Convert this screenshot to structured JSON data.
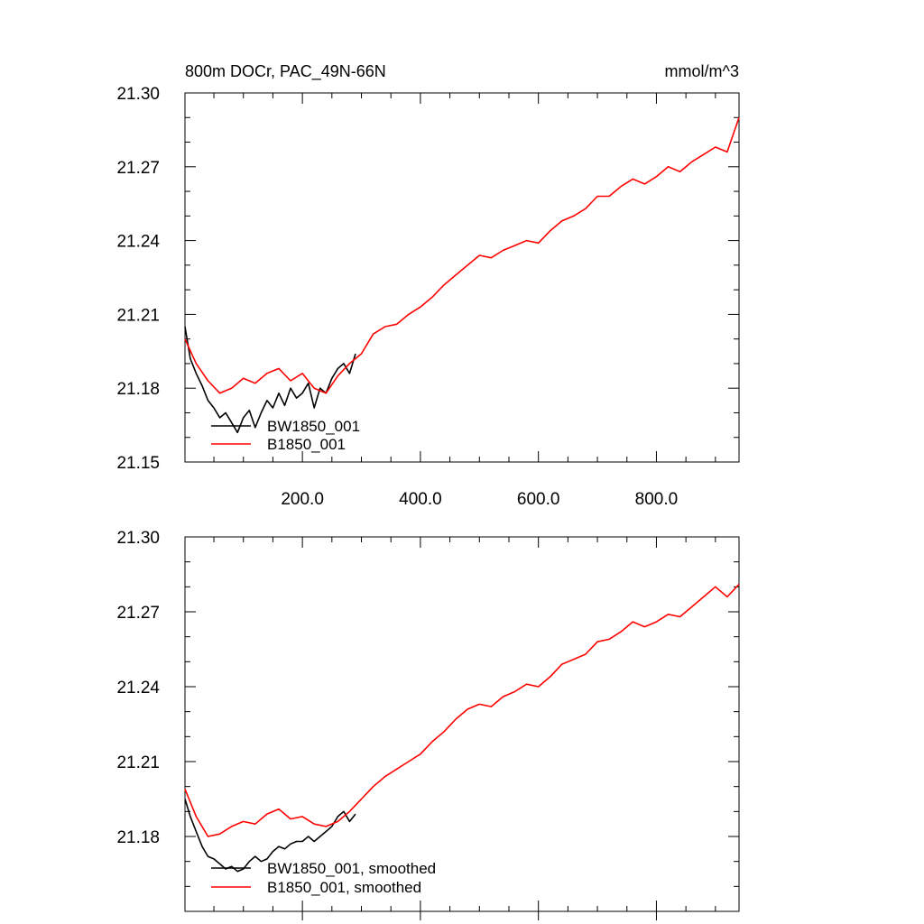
{
  "chart_data": [
    {
      "type": "line",
      "title": "800m DOCr, PAC_49N-66N",
      "units": "mmol/m^3",
      "xlim": [
        1,
        940
      ],
      "ylim": [
        21.15,
        21.3
      ],
      "xticks": [
        {
          "value": 200,
          "label": "200.0"
        },
        {
          "value": 400,
          "label": "400.0"
        },
        {
          "value": 600,
          "label": "600.0"
        },
        {
          "value": 800,
          "label": "800.0"
        }
      ],
      "yticks": [
        {
          "value": 21.15,
          "label": "21.15"
        },
        {
          "value": 21.18,
          "label": "21.18"
        },
        {
          "value": 21.21,
          "label": "21.21"
        },
        {
          "value": 21.24,
          "label": "21.24"
        },
        {
          "value": 21.27,
          "label": "21.27"
        },
        {
          "value": 21.3,
          "label": "21.30"
        }
      ],
      "legend": "bottom-left",
      "series": [
        {
          "name": "BW1850_001",
          "color": "#000000",
          "x": [
            1,
            10,
            20,
            30,
            40,
            50,
            60,
            70,
            80,
            90,
            100,
            110,
            120,
            130,
            140,
            150,
            160,
            170,
            180,
            190,
            200,
            210,
            220,
            230,
            240,
            250,
            260,
            270,
            280,
            290
          ],
          "values": [
            21.205,
            21.192,
            21.186,
            21.181,
            21.175,
            21.172,
            21.168,
            21.17,
            21.166,
            21.162,
            21.168,
            21.171,
            21.164,
            21.17,
            21.175,
            21.172,
            21.178,
            21.173,
            21.18,
            21.176,
            21.178,
            21.182,
            21.172,
            21.18,
            21.178,
            21.184,
            21.188,
            21.19,
            21.186,
            21.194
          ]
        },
        {
          "name": "B1850_001",
          "color": "#ff0000",
          "x": [
            1,
            20,
            40,
            60,
            80,
            100,
            120,
            140,
            160,
            180,
            200,
            220,
            240,
            260,
            280,
            300,
            320,
            340,
            360,
            380,
            400,
            420,
            440,
            460,
            480,
            500,
            520,
            540,
            560,
            580,
            600,
            620,
            640,
            660,
            680,
            700,
            720,
            740,
            760,
            780,
            800,
            820,
            840,
            860,
            880,
            900,
            920,
            940
          ],
          "values": [
            21.2,
            21.19,
            21.183,
            21.178,
            21.18,
            21.184,
            21.182,
            21.186,
            21.188,
            21.183,
            21.186,
            21.18,
            21.178,
            21.185,
            21.19,
            21.194,
            21.202,
            21.205,
            21.206,
            21.21,
            21.213,
            21.217,
            21.222,
            21.226,
            21.23,
            21.234,
            21.233,
            21.236,
            21.238,
            21.24,
            21.239,
            21.244,
            21.248,
            21.25,
            21.253,
            21.258,
            21.258,
            21.262,
            21.265,
            21.263,
            21.266,
            21.27,
            21.268,
            21.272,
            21.275,
            21.278,
            21.276,
            21.29
          ]
        }
      ]
    },
    {
      "type": "line",
      "xlim": [
        1,
        940
      ],
      "ylim": [
        21.15,
        21.3
      ],
      "yticks": [
        {
          "value": 21.18,
          "label": "21.18"
        },
        {
          "value": 21.21,
          "label": "21.21"
        },
        {
          "value": 21.24,
          "label": "21.24"
        },
        {
          "value": 21.27,
          "label": "21.27"
        },
        {
          "value": 21.3,
          "label": "21.30"
        }
      ],
      "legend": "bottom-left",
      "series": [
        {
          "name": "BW1850_001, smoothed",
          "color": "#000000",
          "x": [
            1,
            10,
            20,
            30,
            40,
            50,
            60,
            70,
            80,
            90,
            100,
            110,
            120,
            130,
            140,
            150,
            160,
            170,
            180,
            190,
            200,
            210,
            220,
            230,
            240,
            250,
            260,
            270,
            280,
            290
          ],
          "values": [
            21.195,
            21.188,
            21.182,
            21.176,
            21.172,
            21.171,
            21.169,
            21.167,
            21.168,
            21.166,
            21.167,
            21.17,
            21.172,
            21.17,
            21.171,
            21.174,
            21.176,
            21.175,
            21.177,
            21.178,
            21.178,
            21.18,
            21.178,
            21.18,
            21.182,
            21.184,
            21.188,
            21.19,
            21.186,
            21.189
          ]
        },
        {
          "name": "B1850_001, smoothed",
          "color": "#ff0000",
          "x": [
            1,
            20,
            40,
            60,
            80,
            100,
            120,
            140,
            160,
            180,
            200,
            220,
            240,
            260,
            280,
            300,
            320,
            340,
            360,
            380,
            400,
            420,
            440,
            460,
            480,
            500,
            520,
            540,
            560,
            580,
            600,
            620,
            640,
            660,
            680,
            700,
            720,
            740,
            760,
            780,
            800,
            820,
            840,
            860,
            880,
            900,
            920,
            940
          ],
          "values": [
            21.199,
            21.188,
            21.18,
            21.181,
            21.184,
            21.186,
            21.185,
            21.189,
            21.191,
            21.187,
            21.188,
            21.185,
            21.184,
            21.186,
            21.19,
            21.195,
            21.2,
            21.204,
            21.207,
            21.21,
            21.213,
            21.218,
            21.222,
            21.227,
            21.231,
            21.233,
            21.232,
            21.236,
            21.238,
            21.241,
            21.24,
            21.244,
            21.249,
            21.251,
            21.253,
            21.258,
            21.259,
            21.262,
            21.266,
            21.264,
            21.266,
            21.269,
            21.268,
            21.272,
            21.276,
            21.28,
            21.276,
            21.281
          ]
        }
      ]
    }
  ]
}
